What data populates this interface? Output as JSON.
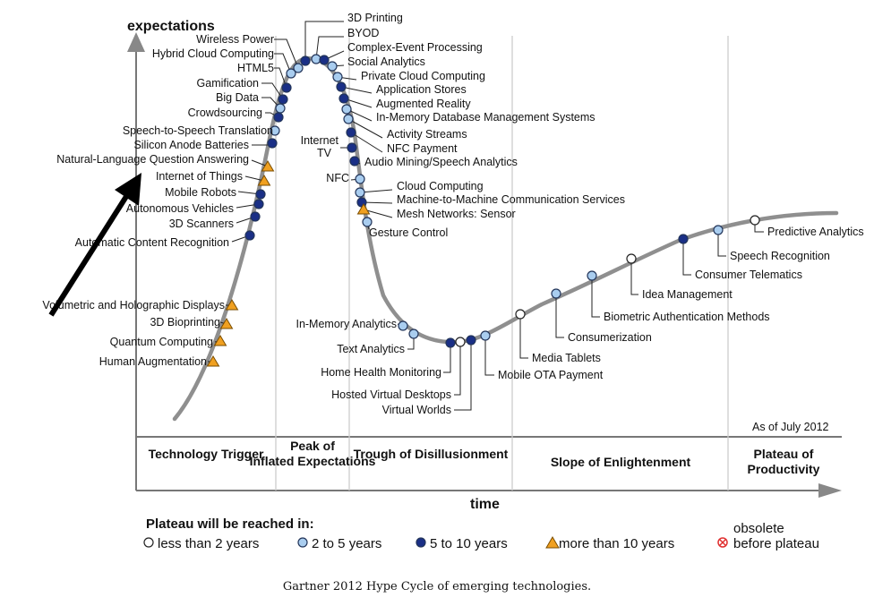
{
  "caption": "Gartner 2012 Hype Cycle of emerging technologies.",
  "chart_data": {
    "type": "scatter",
    "title": "",
    "ylabel": "expectations",
    "xlabel": "time",
    "as_of": "As of July 2012",
    "phases": [
      "Technology Trigger",
      "Peak of Inflated Expectations",
      "Trough of Disillusionment",
      "Slope of Enlightenment",
      "Plateau of Productivity"
    ],
    "legend_title": "Plateau will be reached in:",
    "legend": [
      {
        "key": "lt2",
        "label": "less than 2 years",
        "color": "#ffffff"
      },
      {
        "key": "2to5",
        "label": "2 to 5 years",
        "color": "#a9cdef"
      },
      {
        "key": "5to10",
        "label": "5 to 10 years",
        "color": "#1a2f86"
      },
      {
        "key": "gt10",
        "label": "more than 10 years",
        "color": "#f0a020"
      },
      {
        "key": "obsolete",
        "label": "obsolete\nbefore plateau",
        "color": "#e03030"
      }
    ],
    "technologies": [
      {
        "name": "3D Printing",
        "group": "5to10"
      },
      {
        "name": "BYOD",
        "group": "2to5"
      },
      {
        "name": "Complex-Event Processing",
        "group": "5to10"
      },
      {
        "name": "Social Analytics",
        "group": "2to5"
      },
      {
        "name": "Private Cloud Computing",
        "group": "2to5"
      },
      {
        "name": "Application Stores",
        "group": "5to10"
      },
      {
        "name": "Augmented Reality",
        "group": "5to10"
      },
      {
        "name": "In-Memory Database Management Systems",
        "group": "2to5"
      },
      {
        "name": "Activity Streams",
        "group": "2to5"
      },
      {
        "name": "NFC Payment",
        "group": "5to10"
      },
      {
        "name": "Audio Mining/Speech Analytics",
        "group": "5to10"
      },
      {
        "name": "Cloud Computing",
        "group": "2to5"
      },
      {
        "name": "Machine-to-Machine Communication Services",
        "group": "5to10"
      },
      {
        "name": "Mesh Networks: Sensor",
        "group": "gt10"
      },
      {
        "name": "Gesture Control",
        "group": "2to5"
      },
      {
        "name": "Internet TV",
        "group": "5to10"
      },
      {
        "name": "NFC",
        "group": "2to5"
      },
      {
        "name": "Wireless Power",
        "group": "2to5"
      },
      {
        "name": "Hybrid Cloud Computing",
        "group": "2to5"
      },
      {
        "name": "HTML5",
        "group": "5to10"
      },
      {
        "name": "Gamification",
        "group": "5to10"
      },
      {
        "name": "Big Data",
        "group": "2to5"
      },
      {
        "name": "Crowdsourcing",
        "group": "5to10"
      },
      {
        "name": "Speech-to-Speech Translation",
        "group": "2to5"
      },
      {
        "name": "Silicon Anode Batteries",
        "group": "5to10"
      },
      {
        "name": "Natural-Language Question Answering",
        "group": "gt10"
      },
      {
        "name": "Internet of Things",
        "group": "gt10"
      },
      {
        "name": "Mobile Robots",
        "group": "5to10"
      },
      {
        "name": "Autonomous Vehicles",
        "group": "5to10"
      },
      {
        "name": "3D Scanners",
        "group": "5to10"
      },
      {
        "name": "Automatic Content Recognition",
        "group": "5to10"
      },
      {
        "name": "Volumetric and Holographic Displays",
        "group": "gt10"
      },
      {
        "name": "3D Bioprinting",
        "group": "gt10"
      },
      {
        "name": "Quantum Computing",
        "group": "gt10"
      },
      {
        "name": "Human Augmentation",
        "group": "gt10"
      },
      {
        "name": "In-Memory Analytics",
        "group": "2to5"
      },
      {
        "name": "Text Analytics",
        "group": "2to5"
      },
      {
        "name": "Home Health Monitoring",
        "group": "5to10"
      },
      {
        "name": "Hosted Virtual Desktops",
        "group": "lt2"
      },
      {
        "name": "Virtual Worlds",
        "group": "5to10"
      },
      {
        "name": "Mobile OTA Payment",
        "group": "2to5"
      },
      {
        "name": "Media Tablets",
        "group": "lt2"
      },
      {
        "name": "Consumerization",
        "group": "2to5"
      },
      {
        "name": "Biometric Authentication Methods",
        "group": "2to5"
      },
      {
        "name": "Idea Management",
        "group": "lt2"
      },
      {
        "name": "Consumer Telematics",
        "group": "5to10"
      },
      {
        "name": "Speech Recognition",
        "group": "2to5"
      },
      {
        "name": "Predictive Analytics",
        "group": "lt2"
      }
    ]
  }
}
